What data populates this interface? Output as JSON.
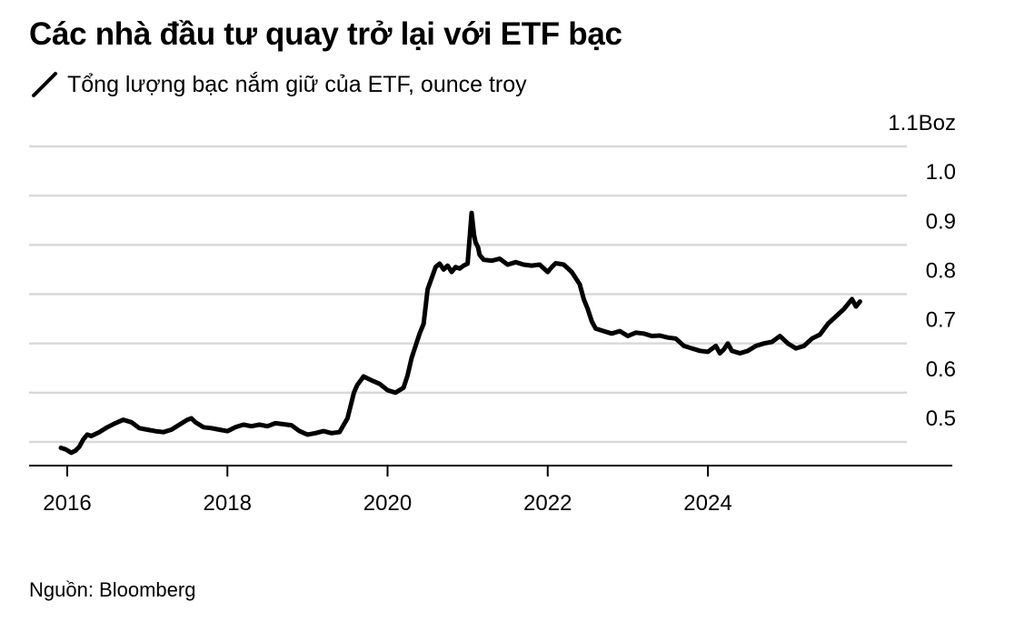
{
  "title": "Các nhà đầu tư quay trở lại với ETF bạc",
  "legend": {
    "label": "Tổng lượng bạc nắm giữ của ETF, ounce troy",
    "icon": "line-series-icon"
  },
  "source": "Nguồn: Bloomberg",
  "colors": {
    "line": "#000000",
    "grid": "#d9d9d9",
    "axis": "#000000",
    "text": "#000000"
  },
  "chart_data": {
    "type": "line",
    "title": "Các nhà đầu tư quay trở lại với ETF bạc",
    "ylabel": "ounce troy",
    "xlim": [
      2015.5,
      2026.7
    ],
    "ylim": [
      0.45,
      1.1
    ],
    "y_ticks": [
      {
        "value": 1.1,
        "label": "1.1Boz"
      },
      {
        "value": 1.0,
        "label": "1.0"
      },
      {
        "value": 0.9,
        "label": "0.9"
      },
      {
        "value": 0.8,
        "label": "0.8"
      },
      {
        "value": 0.7,
        "label": "0.7"
      },
      {
        "value": 0.6,
        "label": "0.6"
      },
      {
        "value": 0.5,
        "label": "0.5"
      }
    ],
    "x_ticks": [
      {
        "value": 2016,
        "label": "2016"
      },
      {
        "value": 2018,
        "label": "2018"
      },
      {
        "value": 2020,
        "label": "2020"
      },
      {
        "value": 2022,
        "label": "2022"
      },
      {
        "value": 2024,
        "label": "2024"
      }
    ],
    "series": [
      {
        "name": "Tổng lượng bạc nắm giữ của ETF, ounce troy",
        "x": [
          2015.92,
          2015.98,
          2016.05,
          2016.1,
          2016.15,
          2016.2,
          2016.25,
          2016.3,
          2016.4,
          2016.5,
          2016.6,
          2016.7,
          2016.8,
          2016.9,
          2017.0,
          2017.1,
          2017.2,
          2017.3,
          2017.4,
          2017.5,
          2017.55,
          2017.6,
          2017.7,
          2017.8,
          2017.9,
          2018.0,
          2018.1,
          2018.2,
          2018.3,
          2018.4,
          2018.5,
          2018.6,
          2018.7,
          2018.8,
          2018.9,
          2019.0,
          2019.1,
          2019.2,
          2019.3,
          2019.4,
          2019.5,
          2019.58,
          2019.62,
          2019.7,
          2019.8,
          2019.9,
          2020.0,
          2020.1,
          2020.2,
          2020.25,
          2020.3,
          2020.4,
          2020.45,
          2020.5,
          2020.6,
          2020.65,
          2020.7,
          2020.75,
          2020.8,
          2020.85,
          2020.9,
          2020.95,
          2021.0,
          2021.05,
          2021.08,
          2021.1,
          2021.13,
          2021.15,
          2021.2,
          2021.3,
          2021.4,
          2021.5,
          2021.6,
          2021.7,
          2021.8,
          2021.9,
          2022.0,
          2022.05,
          2022.1,
          2022.2,
          2022.3,
          2022.4,
          2022.45,
          2022.5,
          2022.55,
          2022.6,
          2022.7,
          2022.8,
          2022.9,
          2023.0,
          2023.1,
          2023.2,
          2023.3,
          2023.4,
          2023.5,
          2023.6,
          2023.7,
          2023.8,
          2023.9,
          2024.0,
          2024.1,
          2024.15,
          2024.2,
          2024.25,
          2024.3,
          2024.4,
          2024.5,
          2024.6,
          2024.7,
          2024.8,
          2024.9,
          2025.0,
          2025.1,
          2025.2,
          2025.3,
          2025.4,
          2025.5,
          2025.6,
          2025.7,
          2025.75,
          2025.8,
          2025.85,
          2025.9
        ],
        "values": [
          0.488,
          0.485,
          0.478,
          0.482,
          0.49,
          0.505,
          0.515,
          0.512,
          0.52,
          0.53,
          0.538,
          0.545,
          0.54,
          0.528,
          0.525,
          0.522,
          0.52,
          0.525,
          0.535,
          0.545,
          0.548,
          0.54,
          0.53,
          0.528,
          0.525,
          0.522,
          0.53,
          0.535,
          0.532,
          0.535,
          0.532,
          0.538,
          0.536,
          0.534,
          0.522,
          0.515,
          0.518,
          0.522,
          0.518,
          0.52,
          0.548,
          0.6,
          0.615,
          0.633,
          0.625,
          0.618,
          0.605,
          0.6,
          0.61,
          0.635,
          0.67,
          0.72,
          0.74,
          0.81,
          0.855,
          0.862,
          0.85,
          0.858,
          0.845,
          0.855,
          0.852,
          0.858,
          0.862,
          0.965,
          0.92,
          0.905,
          0.895,
          0.88,
          0.87,
          0.868,
          0.872,
          0.86,
          0.865,
          0.86,
          0.858,
          0.86,
          0.845,
          0.855,
          0.863,
          0.86,
          0.845,
          0.82,
          0.79,
          0.77,
          0.745,
          0.73,
          0.725,
          0.72,
          0.725,
          0.715,
          0.722,
          0.72,
          0.715,
          0.716,
          0.712,
          0.71,
          0.695,
          0.69,
          0.685,
          0.683,
          0.695,
          0.68,
          0.688,
          0.7,
          0.685,
          0.68,
          0.685,
          0.695,
          0.7,
          0.703,
          0.715,
          0.7,
          0.69,
          0.695,
          0.71,
          0.718,
          0.74,
          0.755,
          0.77,
          0.78,
          0.79,
          0.775,
          0.785
        ]
      }
    ]
  }
}
